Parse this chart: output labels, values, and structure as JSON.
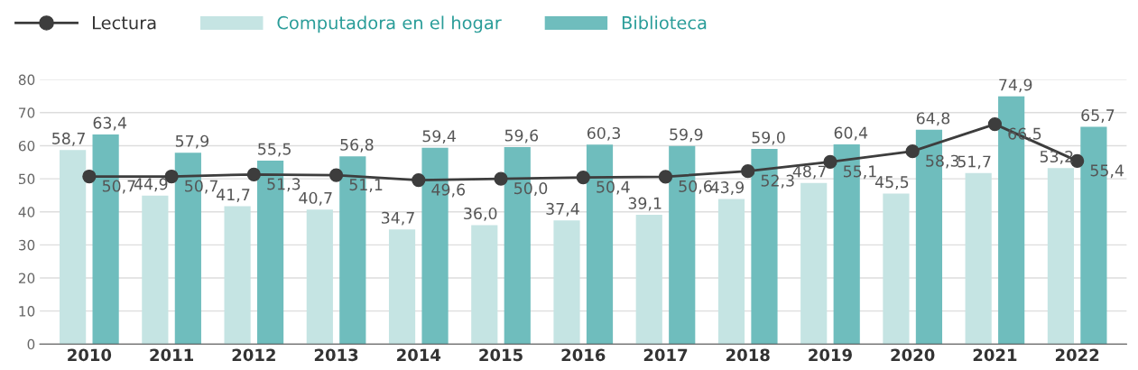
{
  "chart_data": {
    "type": "bar",
    "categories": [
      "2010",
      "2011",
      "2012",
      "2013",
      "2014",
      "2015",
      "2016",
      "2017",
      "2018",
      "2019",
      "2020",
      "2021",
      "2022"
    ],
    "series": [
      {
        "name": "Lectura",
        "type": "line",
        "color": "#3d3d3d",
        "marker": "circle",
        "values": [
          50.7,
          50.7,
          51.3,
          51.1,
          49.6,
          50.0,
          50.4,
          50.6,
          52.3,
          55.1,
          58.3,
          66.5,
          55.4
        ],
        "value_labels": [
          "50,7",
          "50,7",
          "51,3",
          "51,1",
          "49,6",
          "50,0",
          "50,4",
          "50,6",
          "52,3",
          "55,1",
          "58,3",
          "66,5",
          "55,4"
        ]
      },
      {
        "name": "Computadora en el hogar",
        "color": "#c5e4e3",
        "values": [
          58.7,
          44.9,
          41.7,
          40.7,
          34.7,
          36.0,
          37.4,
          39.1,
          43.9,
          48.7,
          45.5,
          51.7,
          53.2
        ],
        "value_labels": [
          "58,7",
          "44,9",
          "41,7",
          "40,7",
          "34,7",
          "36,0",
          "37,4",
          "39,1",
          "43,9",
          "48,7",
          "45,5",
          "51,7",
          "53,2"
        ]
      },
      {
        "name": "Biblioteca",
        "color": "#6fbdbd",
        "values": [
          63.4,
          57.9,
          55.5,
          56.8,
          59.4,
          59.6,
          60.3,
          59.9,
          59.0,
          60.4,
          64.8,
          74.9,
          65.7
        ],
        "value_labels": [
          "63,4",
          "57,9",
          "55,5",
          "56,8",
          "59,4",
          "59,6",
          "60,3",
          "59,9",
          "59,0",
          "60,4",
          "64,8",
          "74,9",
          "65,7"
        ]
      }
    ],
    "ylim": [
      0,
      80
    ],
    "yticks": [
      0,
      10,
      20,
      30,
      40,
      50,
      60,
      70,
      80
    ],
    "grid": "y",
    "legend": "top left"
  }
}
